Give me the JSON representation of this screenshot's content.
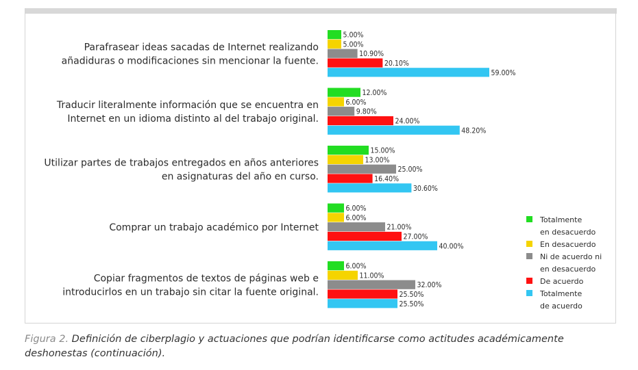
{
  "chart_data": {
    "type": "bar",
    "orientation": "horizontal",
    "categories": [
      [
        "Parafrasear ideas sacadas de Internet realizando",
        "añadiduras o modificaciones sin mencionar la fuente."
      ],
      [
        "Traducir literalmente información que se encuentra en",
        "Internet en un idioma distinto al del trabajo original."
      ],
      [
        "Utilizar partes de trabajos entregados en años anteriores",
        "en asignaturas del año en curso."
      ],
      [
        "Comprar un trabajo académico por Internet"
      ],
      [
        "Copiar fragmentos de textos de páginas web e",
        "introducirlos en un trabajo sin citar la fuente original."
      ]
    ],
    "series": [
      {
        "name": [
          "Totalmente",
          "en desacuerdo"
        ],
        "color": "#22dd22",
        "values": [
          5.0,
          12.0,
          15.0,
          6.0,
          6.0
        ],
        "labels": [
          "5.00%",
          "12.00%",
          "15.00%",
          "6.00%",
          "6.00%"
        ]
      },
      {
        "name": [
          "En desacuerdo"
        ],
        "color": "#f5d400",
        "values": [
          5.0,
          6.0,
          13.0,
          6.0,
          11.0
        ],
        "labels": [
          "5.00%",
          "6.00%",
          "13.00%",
          "6.00%",
          "11.00%"
        ]
      },
      {
        "name": [
          "Ni de acuerdo ni",
          "en desacuerdo"
        ],
        "color": "#8c8c8c",
        "values": [
          10.9,
          9.8,
          25.0,
          21.0,
          32.0
        ],
        "labels": [
          "10.90%",
          "9.80%",
          "25.00%",
          "21.00%",
          "32.00%"
        ]
      },
      {
        "name": [
          "De acuerdo"
        ],
        "color": "#ff1111",
        "values": [
          20.1,
          24.0,
          16.4,
          27.0,
          25.5
        ],
        "labels": [
          "20.10%",
          "24.00%",
          "16.40%",
          "27.00%",
          "25.50%"
        ]
      },
      {
        "name": [
          "Totalmente",
          "de acuerdo"
        ],
        "color": "#33c6f2",
        "values": [
          59.0,
          48.2,
          30.6,
          40.0,
          25.5
        ],
        "labels": [
          "59.00%",
          "48.20%",
          "30.60%",
          "40.00%",
          "25.50%"
        ]
      }
    ],
    "legend_position": "right",
    "grid": false
  },
  "caption": {
    "figure": "Figura 2.",
    "text": "Definición de ciberplagio y actuaciones que podrían identificarse como actitudes académicamente deshonestas (continuación)."
  }
}
